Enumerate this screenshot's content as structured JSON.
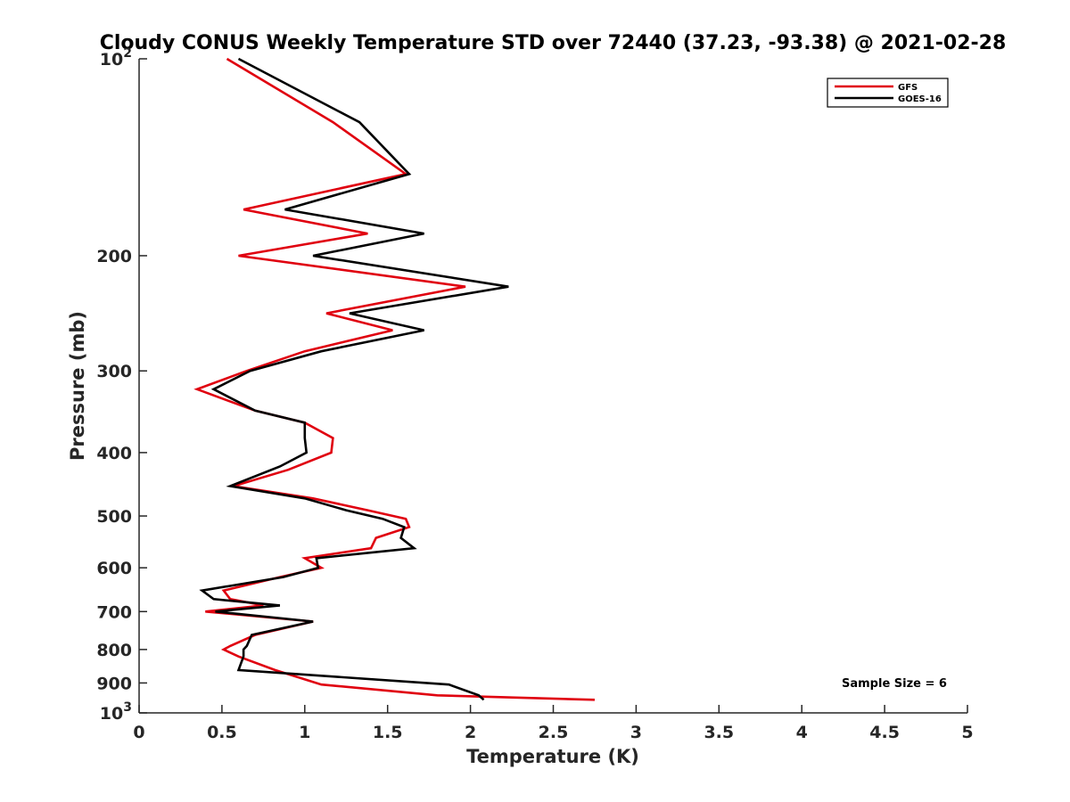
{
  "chart_data": {
    "type": "line",
    "title": "Cloudy CONUS Weekly Temperature STD over 72440 (37.23, -93.38) @ 2021-02-28",
    "xlabel": "Temperature (K)",
    "ylabel": "Pressure (mb)",
    "xlim": [
      0,
      5
    ],
    "ylim": [
      100,
      1000
    ],
    "yscale": "log",
    "yreversed": true,
    "x_ticks": [
      "0",
      "0.5",
      "1",
      "1.5",
      "2",
      "2.5",
      "3",
      "3.5",
      "4",
      "4.5",
      "5"
    ],
    "y_ticks": [
      {
        "value": 100,
        "base": "10",
        "exp": "2"
      },
      {
        "value": 200,
        "label": "200"
      },
      {
        "value": 300,
        "label": "300"
      },
      {
        "value": 400,
        "label": "400"
      },
      {
        "value": 500,
        "label": "500"
      },
      {
        "value": 600,
        "label": "600"
      },
      {
        "value": 700,
        "label": "700"
      },
      {
        "value": 800,
        "label": "800"
      },
      {
        "value": 900,
        "label": "900"
      },
      {
        "value": 1000,
        "base": "10",
        "exp": "3"
      }
    ],
    "grid": false,
    "legend_position": "top-right",
    "annotation": "Sample Size = 6",
    "series": [
      {
        "name": "GFS",
        "color": "#e0000f",
        "points": [
          [
            0.53,
            100
          ],
          [
            1.17,
            125
          ],
          [
            1.61,
            150
          ],
          [
            0.63,
            170
          ],
          [
            1.38,
            185
          ],
          [
            0.6,
            200
          ],
          [
            1.97,
            223
          ],
          [
            1.13,
            245
          ],
          [
            1.53,
            260
          ],
          [
            1.0,
            280
          ],
          [
            0.65,
            300
          ],
          [
            0.35,
            320
          ],
          [
            0.7,
            345
          ],
          [
            1.0,
            360
          ],
          [
            1.17,
            380
          ],
          [
            1.16,
            400
          ],
          [
            0.9,
            425
          ],
          [
            0.57,
            450
          ],
          [
            1.05,
            470
          ],
          [
            1.38,
            490
          ],
          [
            1.61,
            505
          ],
          [
            1.63,
            520
          ],
          [
            1.43,
            540
          ],
          [
            1.4,
            560
          ],
          [
            1.0,
            580
          ],
          [
            1.1,
            600
          ],
          [
            0.85,
            620
          ],
          [
            0.51,
            650
          ],
          [
            0.55,
            670
          ],
          [
            0.75,
            685
          ],
          [
            0.4,
            700
          ],
          [
            1.05,
            725
          ],
          [
            0.7,
            760
          ],
          [
            0.55,
            790
          ],
          [
            0.51,
            800
          ],
          [
            0.6,
            820
          ],
          [
            0.82,
            860
          ],
          [
            1.1,
            905
          ],
          [
            1.8,
            940
          ],
          [
            2.75,
            955
          ]
        ]
      },
      {
        "name": "GOES-16",
        "color": "#000000",
        "points": [
          [
            0.6,
            100
          ],
          [
            1.33,
            125
          ],
          [
            1.63,
            150
          ],
          [
            0.88,
            170
          ],
          [
            1.72,
            185
          ],
          [
            1.05,
            200
          ],
          [
            2.23,
            223
          ],
          [
            1.27,
            245
          ],
          [
            1.72,
            260
          ],
          [
            1.1,
            280
          ],
          [
            0.67,
            300
          ],
          [
            0.45,
            320
          ],
          [
            0.7,
            345
          ],
          [
            1.0,
            360
          ],
          [
            1.0,
            380
          ],
          [
            1.01,
            400
          ],
          [
            0.85,
            420
          ],
          [
            0.55,
            450
          ],
          [
            1.0,
            470
          ],
          [
            1.25,
            490
          ],
          [
            1.47,
            505
          ],
          [
            1.6,
            520
          ],
          [
            1.58,
            540
          ],
          [
            1.66,
            560
          ],
          [
            1.07,
            580
          ],
          [
            1.08,
            600
          ],
          [
            0.87,
            620
          ],
          [
            0.38,
            650
          ],
          [
            0.45,
            670
          ],
          [
            0.85,
            685
          ],
          [
            0.46,
            700
          ],
          [
            1.05,
            725
          ],
          [
            0.68,
            760
          ],
          [
            0.65,
            790
          ],
          [
            0.63,
            800
          ],
          [
            0.63,
            820
          ],
          [
            0.6,
            860
          ],
          [
            1.87,
            905
          ],
          [
            2.05,
            940
          ],
          [
            2.08,
            955
          ]
        ]
      }
    ]
  }
}
